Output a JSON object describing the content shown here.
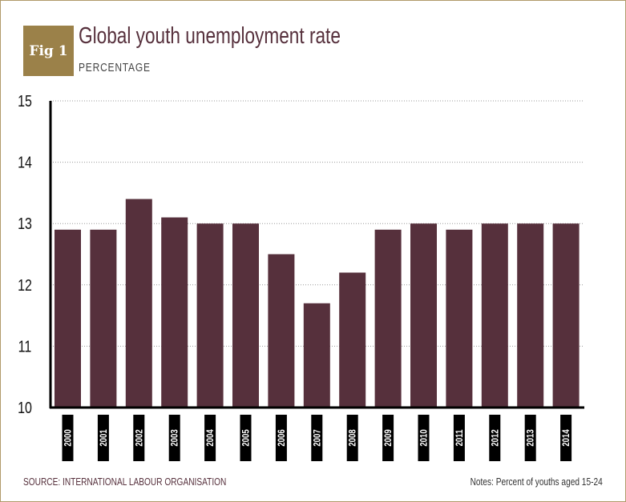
{
  "badge": "Fig 1",
  "title": "Global youth unemployment rate",
  "subtitle": "PERCENTAGE",
  "source": "SOURCE: INTERNATIONAL LABOUR ORGANISATION",
  "notes": "Notes: Percent of youths aged 15-24",
  "colors": {
    "bar": "#56303c",
    "badge": "#9b8149",
    "label_box": "#000000"
  },
  "chart_data": {
    "type": "bar",
    "title": "Global youth unemployment rate",
    "ylabel": "PERCENTAGE",
    "categories": [
      "2000",
      "2001",
      "2002",
      "2003",
      "2004",
      "2005",
      "2006",
      "2007",
      "2008",
      "2009",
      "2010",
      "2011",
      "2012",
      "2013",
      "2014"
    ],
    "values": [
      12.9,
      12.9,
      13.4,
      13.1,
      13.0,
      13.0,
      12.5,
      11.7,
      12.2,
      12.9,
      13.0,
      12.9,
      13.0,
      13.0,
      13.0
    ],
    "ylim": [
      10,
      15
    ],
    "yticks": [
      "10",
      "11",
      "12",
      "13",
      "14",
      "15"
    ],
    "grid": "horizontal dotted"
  }
}
